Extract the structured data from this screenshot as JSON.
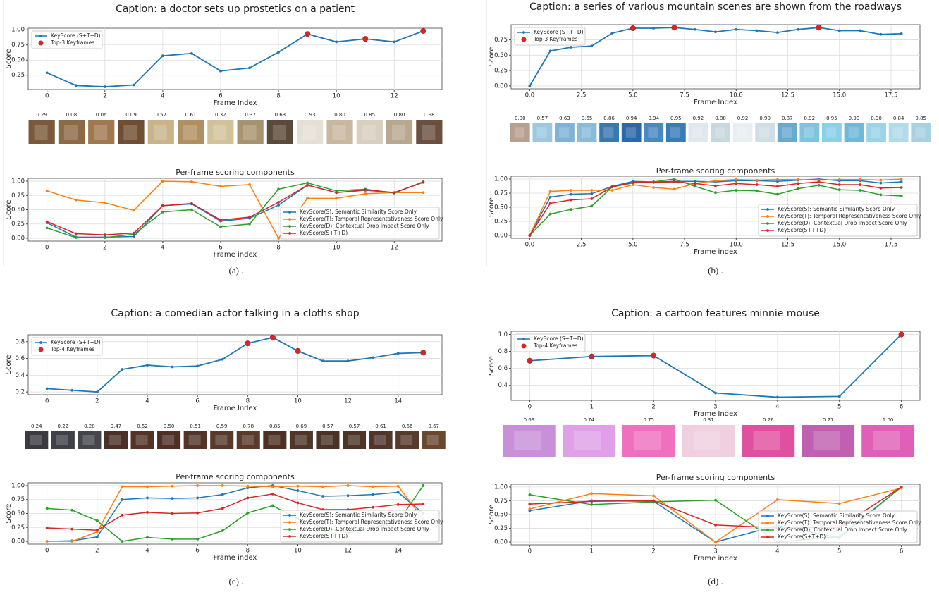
{
  "panel_labels": [
    "(a) .",
    "(b) .",
    "(c) .",
    "(d) ."
  ],
  "chart_data": [
    {
      "type": "line",
      "title": "Caption: a doctor sets up prostetics on a patient",
      "xlabel": "Frame Index",
      "ylabel": "Score",
      "x": [
        0,
        1,
        2,
        3,
        4,
        5,
        6,
        7,
        8,
        9,
        10,
        11,
        12,
        13
      ],
      "series": [
        {
          "name": "KeyScore (S+T+D)",
          "color": "#1f77b4",
          "values": [
            0.29,
            0.08,
            0.06,
            0.09,
            0.57,
            0.61,
            0.32,
            0.37,
            0.63,
            0.93,
            0.8,
            0.85,
            0.8,
            0.98
          ],
          "value_labels": [
            "0.29",
            "0.08",
            "0.06",
            "0.09",
            "0.57",
            "0.61",
            "0.32",
            "0.37",
            "0.63",
            "0.93",
            "0.80",
            "0.85",
            "0.80",
            "0.98"
          ]
        },
        {
          "name": "Top-3 Keyframes",
          "type": "scatter",
          "color": "#d62728",
          "x": [
            9,
            11,
            13
          ],
          "values": [
            0.93,
            0.85,
            0.98
          ]
        }
      ],
      "xlim": [
        -0.65,
        13.65
      ],
      "ylim": [
        0.014,
        1.026
      ],
      "xticks": [
        0,
        2,
        4,
        6,
        8,
        10,
        12
      ],
      "yticks": [
        0.25,
        {
          "value": 0.5,
          "label": "0.50"
        },
        0.75,
        {
          "value": 1,
          "label": "1.00"
        }
      ],
      "grid": true,
      "legend": "upper left"
    },
    {
      "type": "line",
      "title": "Per-frame scoring components",
      "xlabel": "Frame index",
      "ylabel": "Score",
      "x": [
        0,
        1,
        2,
        3,
        4,
        5,
        6,
        7,
        8,
        9,
        10,
        11,
        12,
        13
      ],
      "series": [
        {
          "name": "KeyScore(S): Semantic Similarity Score Only",
          "color": "#1f77b4",
          "values": [
            0.27,
            0.02,
            0.02,
            0.03,
            0.57,
            0.6,
            0.3,
            0.35,
            0.58,
            0.93,
            0.8,
            0.84,
            0.8,
            0.98
          ]
        },
        {
          "name": "KeyScore(T): Temporal Representativeness Score Only",
          "color": "#ff7f0e",
          "values": [
            0.83,
            0.67,
            0.62,
            0.49,
            1,
            0.99,
            0.91,
            0.94,
            0,
            0.7,
            0.7,
            0.78,
            0.8,
            0.8
          ]
        },
        {
          "name": "KeyScore(D): Contextual Drop Impact Score Only",
          "color": "#2ca02c",
          "values": [
            0.18,
            0.01,
            0.01,
            0.07,
            0.46,
            0.5,
            0.2,
            0.25,
            0.86,
            0.97,
            0.83,
            0.86,
            0.79,
            0.99
          ]
        },
        {
          "name": "KeyScore(S+T+D)",
          "color": "#d62728",
          "values": [
            0.29,
            0.08,
            0.06,
            0.09,
            0.57,
            0.61,
            0.32,
            0.37,
            0.63,
            0.93,
            0.8,
            0.85,
            0.8,
            0.98
          ]
        }
      ],
      "xlim": [
        -0.65,
        13.65
      ],
      "ylim": [
        -0.05,
        1.05
      ],
      "xticks": [
        0,
        2,
        4,
        6,
        8,
        10,
        12
      ],
      "yticks": [
        {
          "value": 0,
          "label": "0.00"
        },
        0.25,
        {
          "value": 0.5,
          "label": "0.50"
        },
        0.75,
        {
          "value": 1,
          "label": "1.00"
        }
      ],
      "grid": true,
      "legend": "lower right"
    },
    {
      "type": "line",
      "title": "Caption: a series of various mountain scenes are shown from the roadways",
      "xlabel": "Frame Index",
      "ylabel": "Score",
      "x": [
        0,
        1,
        2,
        3,
        4,
        5,
        6,
        7,
        8,
        9,
        10,
        11,
        12,
        13,
        14,
        15,
        16,
        17,
        18
      ],
      "series": [
        {
          "name": "KeyScore (S+T+D)",
          "color": "#1f77b4",
          "values": [
            0,
            0.57,
            0.63,
            0.65,
            0.86,
            0.94,
            0.94,
            0.95,
            0.92,
            0.88,
            0.92,
            0.9,
            0.87,
            0.92,
            0.95,
            0.9,
            0.9,
            0.84,
            0.85
          ],
          "value_labels": [
            "0.00",
            "0.57",
            "0.63",
            "0.65",
            "0.86",
            "0.94",
            "0.94",
            "0.95",
            "0.92",
            "0.88",
            "0.92",
            "0.90",
            "0.87",
            "0.92",
            "0.95",
            "0.90",
            "0.90",
            "0.84",
            "0.85"
          ]
        },
        {
          "name": "Top-3 Keyframes",
          "type": "scatter",
          "color": "#d62728",
          "x": [
            5,
            7,
            14
          ],
          "values": [
            0.94,
            0.95,
            0.95
          ]
        }
      ],
      "xlim": [
        -0.9,
        18.9
      ],
      "ylim": [
        -0.0475,
        0.9975
      ],
      "xticks": [
        {
          "value": 0,
          "label": "0.0"
        },
        2.5,
        {
          "value": 5,
          "label": "5.0"
        },
        7.5,
        {
          "value": 10,
          "label": "10.0"
        },
        12.5,
        {
          "value": 15,
          "label": "15.0"
        },
        17.5
      ],
      "yticks": [
        {
          "value": 0,
          "label": "0.00"
        },
        0.25,
        {
          "value": 0.5,
          "label": "0.50"
        },
        0.75
      ],
      "grid": true,
      "legend": "upper left"
    },
    {
      "type": "line",
      "title": "Per-frame scoring components",
      "xlabel": "Frame index",
      "ylabel": "Score",
      "x": [
        0,
        1,
        2,
        3,
        4,
        5,
        6,
        7,
        8,
        9,
        10,
        11,
        12,
        13,
        14,
        15,
        16,
        17,
        18
      ],
      "series": [
        {
          "name": "KeyScore(S): Semantic Similarity Score Only",
          "color": "#1f77b4",
          "values": [
            0,
            0.68,
            0.73,
            0.74,
            0.87,
            0.96,
            0.95,
            0.96,
            0.96,
            0.95,
            0.97,
            0.97,
            0.96,
            0.98,
            1,
            0.97,
            0.97,
            0.93,
            0.95
          ]
        },
        {
          "name": "KeyScore(T): Temporal Representativeness Score Only",
          "color": "#ff7f0e",
          "values": [
            0,
            0.78,
            0.8,
            0.8,
            0.8,
            0.9,
            0.85,
            0.82,
            0.92,
            0.97,
            0.99,
            0.98,
            0.99,
            0.99,
            0.98,
            0.99,
            0.99,
            0.98,
            1
          ]
        },
        {
          "name": "KeyScore(D): Contextual Drop Impact Score Only",
          "color": "#2ca02c",
          "values": [
            0,
            0.38,
            0.46,
            0.52,
            0.86,
            0.93,
            0.95,
            1,
            0.87,
            0.76,
            0.8,
            0.79,
            0.73,
            0.83,
            0.89,
            0.81,
            0.8,
            0.72,
            0.7
          ]
        },
        {
          "name": "KeyScore(S+T+D)",
          "color": "#d62728",
          "values": [
            0,
            0.57,
            0.63,
            0.65,
            0.86,
            0.94,
            0.94,
            0.95,
            0.92,
            0.88,
            0.92,
            0.9,
            0.87,
            0.92,
            0.95,
            0.9,
            0.9,
            0.84,
            0.85
          ]
        }
      ],
      "xlim": [
        -0.9,
        18.9
      ],
      "ylim": [
        -0.05,
        1.05
      ],
      "xticks": [
        {
          "value": 0,
          "label": "0.0"
        },
        2.5,
        {
          "value": 5,
          "label": "5.0"
        },
        7.5,
        {
          "value": 10,
          "label": "10.0"
        },
        12.5,
        {
          "value": 15,
          "label": "15.0"
        },
        17.5
      ],
      "yticks": [
        {
          "value": 0,
          "label": "0.00"
        },
        0.25,
        {
          "value": 0.5,
          "label": "0.50"
        },
        0.75,
        {
          "value": 1,
          "label": "1.00"
        }
      ],
      "grid": true,
      "legend": "lower right"
    },
    {
      "type": "line",
      "title": "Caption: a comedian actor talking in a cloths shop",
      "xlabel": "Frame Index",
      "ylabel": "Score",
      "x": [
        0,
        1,
        2,
        3,
        4,
        5,
        6,
        7,
        8,
        9,
        10,
        11,
        12,
        13,
        14,
        15
      ],
      "series": [
        {
          "name": "KeyScore (S+T+D)",
          "color": "#1f77b4",
          "values": [
            0.24,
            0.22,
            0.2,
            0.47,
            0.52,
            0.5,
            0.51,
            0.59,
            0.78,
            0.85,
            0.69,
            0.57,
            0.57,
            0.61,
            0.66,
            0.67
          ],
          "value_labels": [
            "0.24",
            "0.22",
            "0.20",
            "0.47",
            "0.52",
            "0.50",
            "0.51",
            "0.59",
            "0.78",
            "0.85",
            "0.69",
            "0.57",
            "0.57",
            "0.61",
            "0.66",
            "0.67"
          ]
        },
        {
          "name": "Top-4 Keyframes",
          "type": "scatter",
          "color": "#d62728",
          "x": [
            8,
            9,
            10,
            15
          ],
          "values": [
            0.78,
            0.85,
            0.69,
            0.67
          ]
        }
      ],
      "xlim": [
        -0.75,
        15.75
      ],
      "ylim": [
        0.1675,
        0.8825
      ],
      "xticks": [
        0,
        2,
        4,
        6,
        8,
        10,
        12,
        14
      ],
      "yticks": [
        0.2,
        0.4,
        0.6,
        0.8
      ],
      "grid": true,
      "legend": "upper left"
    },
    {
      "type": "line",
      "title": "Per-frame scoring components",
      "xlabel": "Frame index",
      "ylabel": "Score",
      "x": [
        0,
        1,
        2,
        3,
        4,
        5,
        6,
        7,
        8,
        9,
        10,
        11,
        12,
        13,
        14,
        15
      ],
      "series": [
        {
          "name": "KeyScore(S): Semantic Similarity Score Only",
          "color": "#1f77b4",
          "values": [
            0,
            0.01,
            0.08,
            0.75,
            0.78,
            0.77,
            0.78,
            0.84,
            0.96,
            1,
            0.91,
            0.81,
            0.82,
            0.84,
            0.88,
            0.5
          ]
        },
        {
          "name": "KeyScore(T): Temporal Representativeness Score Only",
          "color": "#ff7f0e",
          "values": [
            0,
            0,
            0.17,
            0.98,
            0.98,
            0.99,
            1,
            1,
            0.99,
            0.98,
            0.99,
            0.98,
            1,
            0.98,
            0.99,
            0.4
          ]
        },
        {
          "name": "KeyScore(D): Contextual Drop Impact Score Only",
          "color": "#2ca02c",
          "values": [
            0.59,
            0.56,
            0.37,
            0,
            0.07,
            0.04,
            0.04,
            0.19,
            0.51,
            0.64,
            0.4,
            0.25,
            0.15,
            0.25,
            0.35,
            1
          ]
        },
        {
          "name": "KeyScore(S+T+D)",
          "color": "#d62728",
          "values": [
            0.24,
            0.22,
            0.2,
            0.47,
            0.52,
            0.5,
            0.51,
            0.59,
            0.78,
            0.85,
            0.69,
            0.57,
            0.57,
            0.61,
            0.66,
            0.67
          ]
        }
      ],
      "xlim": [
        -0.75,
        15.75
      ],
      "ylim": [
        -0.05,
        1.05
      ],
      "xticks": [
        0,
        2,
        4,
        6,
        8,
        10,
        12,
        14
      ],
      "yticks": [
        {
          "value": 0,
          "label": "0.00"
        },
        0.25,
        {
          "value": 0.5,
          "label": "0.50"
        },
        0.75,
        {
          "value": 1,
          "label": "1.00"
        }
      ],
      "grid": true,
      "legend": "lower right"
    },
    {
      "type": "line",
      "title": "Caption: a cartoon features minnie mouse",
      "xlabel": "Frame Index",
      "ylabel": "Score",
      "x": [
        0,
        1,
        2,
        3,
        4,
        5,
        6
      ],
      "series": [
        {
          "name": "KeyScore (S+T+D)",
          "color": "#1f77b4",
          "values": [
            0.69,
            0.74,
            0.75,
            0.31,
            0.26,
            0.27,
            1
          ],
          "value_labels": [
            "0.69",
            "0.74",
            "0.75",
            "0.31",
            "0.26",
            "0.27",
            "1.00"
          ]
        },
        {
          "name": "Top-4 Keyframes",
          "type": "scatter",
          "color": "#d62728",
          "x": [
            0,
            1,
            2,
            6
          ],
          "values": [
            0.69,
            0.74,
            0.75,
            1
          ]
        }
      ],
      "xlim": [
        -0.3,
        6.3
      ],
      "ylim": [
        0.223,
        1.037
      ],
      "xticks": [
        0,
        1,
        2,
        3,
        4,
        5,
        6
      ],
      "yticks": [
        0.4,
        0.6,
        0.8,
        {
          "value": 1,
          "label": "1.0"
        }
      ],
      "grid": true,
      "legend": "upper left"
    },
    {
      "type": "line",
      "title": "Per-frame scoring components",
      "xlabel": "Frame index",
      "ylabel": "Score",
      "x": [
        0,
        1,
        2,
        3,
        4,
        5,
        6
      ],
      "series": [
        {
          "name": "KeyScore(S): Semantic Similarity Score Only",
          "color": "#1f77b4",
          "values": [
            0.57,
            0.75,
            0.74,
            0,
            0.3,
            0.08,
            1
          ]
        },
        {
          "name": "KeyScore(T): Temporal Representativeness Score Only",
          "color": "#ff7f0e",
          "values": [
            0.6,
            0.88,
            0.84,
            0,
            0.77,
            0.7,
            0.98
          ]
        },
        {
          "name": "KeyScore(D): Contextual Drop Impact Score Only",
          "color": "#2ca02c",
          "values": [
            0.86,
            0.68,
            0.73,
            0.76,
            0,
            0.1,
            1
          ]
        },
        {
          "name": "KeyScore(S+T+D)",
          "color": "#d62728",
          "values": [
            0.69,
            0.74,
            0.75,
            0.31,
            0.26,
            0.27,
            1
          ]
        }
      ],
      "xlim": [
        -0.3,
        6.3
      ],
      "ylim": [
        -0.05,
        1.05
      ],
      "xticks": [
        0,
        1,
        2,
        3,
        4,
        5,
        6
      ],
      "yticks": [
        {
          "value": 0,
          "label": "0.00"
        },
        0.25,
        {
          "value": 0.5,
          "label": "0.50"
        },
        0.75,
        {
          "value": 1,
          "label": "1.00"
        }
      ],
      "grid": true,
      "legend": "lower right"
    }
  ]
}
